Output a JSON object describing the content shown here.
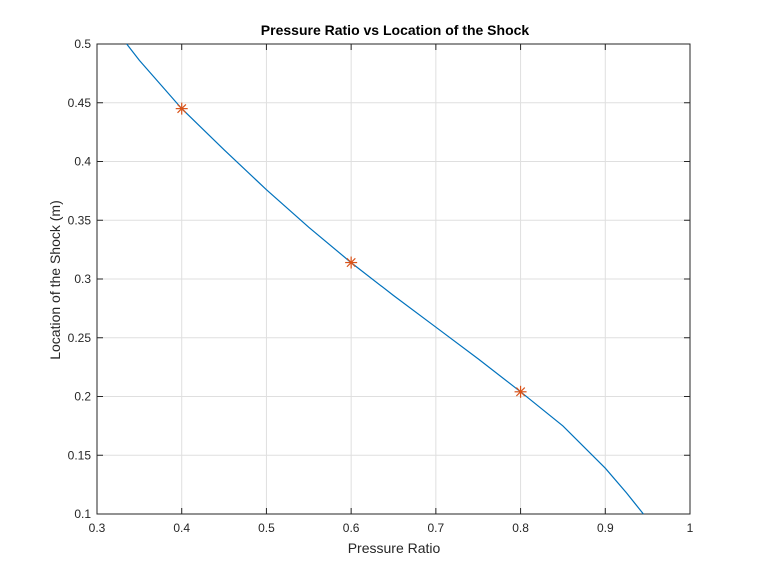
{
  "chart_data": {
    "type": "line",
    "title": "Pressure Ratio vs Location of the Shock",
    "xlabel": "Pressure Ratio",
    "ylabel": "Location of the Shock (m)",
    "xlim": [
      0.3,
      1
    ],
    "ylim": [
      0.1,
      0.5
    ],
    "grid": true,
    "x_ticks": [
      0.3,
      0.4,
      0.5,
      0.6,
      0.7,
      0.8,
      0.9,
      1
    ],
    "x_tick_labels": [
      "0.3",
      "0.4",
      "0.5",
      "0.6",
      "0.7",
      "0.8",
      "0.9",
      "1"
    ],
    "y_ticks": [
      0.1,
      0.15,
      0.2,
      0.25,
      0.3,
      0.35,
      0.4,
      0.45,
      0.5
    ],
    "y_tick_labels": [
      "0.1",
      "0.15",
      "0.2",
      "0.25",
      "0.3",
      "0.35",
      "0.4",
      "0.45",
      "0.5"
    ],
    "series": [
      {
        "color": "#0072BD",
        "style": "line",
        "x": [
          0.335,
          0.35,
          0.4,
          0.45,
          0.5,
          0.55,
          0.6,
          0.65,
          0.7,
          0.75,
          0.8,
          0.85,
          0.9,
          0.925,
          0.945
        ],
        "y": [
          0.5,
          0.486,
          0.445,
          0.41,
          0.376,
          0.344,
          0.314,
          0.286,
          0.259,
          0.232,
          0.204,
          0.175,
          0.139,
          0.118,
          0.1
        ]
      },
      {
        "color": "#D95319",
        "style": "asterisk",
        "x": [
          0.4,
          0.6,
          0.8
        ],
        "y": [
          0.445,
          0.314,
          0.204
        ]
      }
    ]
  }
}
